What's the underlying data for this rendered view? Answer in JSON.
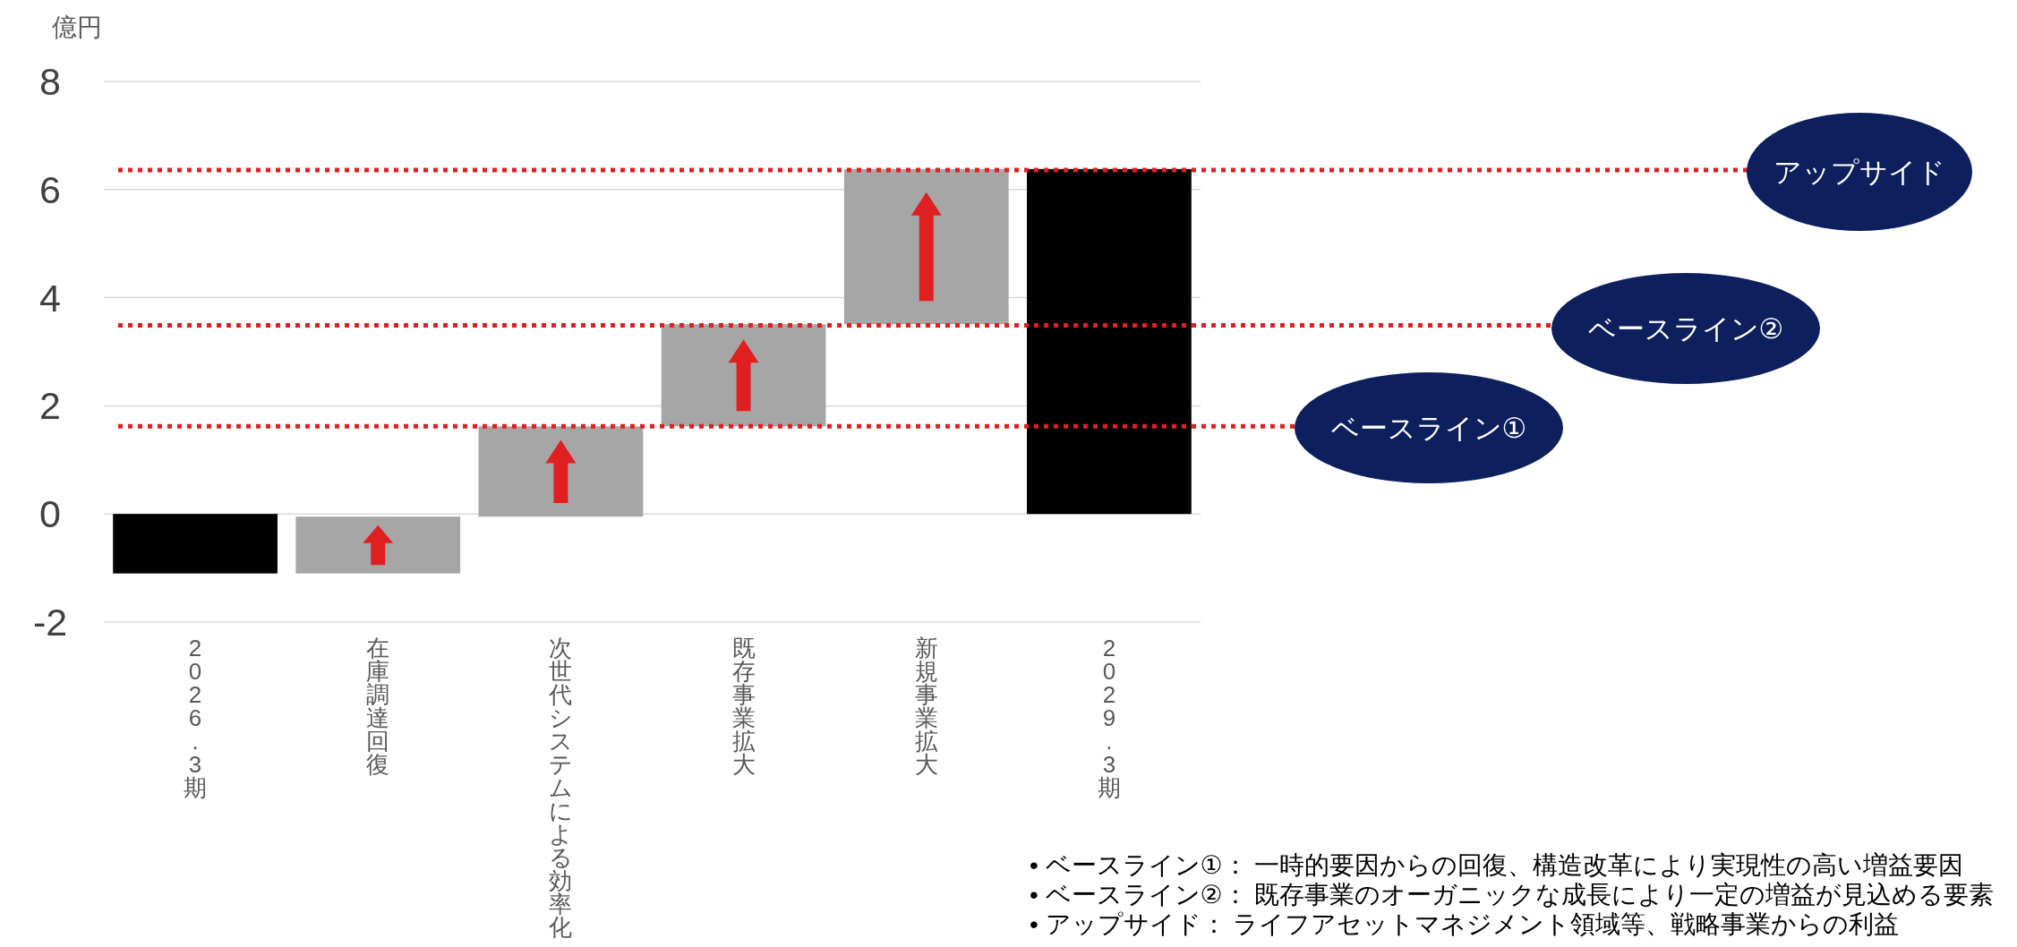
{
  "chart_data": {
    "type": "bar",
    "ylabel": "億円",
    "categories": [
      "2026.3期",
      "在庫調達回復",
      "次世代システムによる効率化",
      "既存事業拡大",
      "新規事業拡大",
      "2029.3期"
    ],
    "values": [
      -1.1,
      1.05,
      1.67,
      1.89,
      2.87,
      6.38
    ],
    "base": [
      0,
      -1.1,
      -0.05,
      1.62,
      3.51,
      0
    ],
    "colors": [
      "#000000",
      "#a6a6a6",
      "#a6a6a6",
      "#a6a6a6",
      "#a6a6a6",
      "#000000"
    ],
    "ylim": [
      -2,
      8
    ],
    "yticks": [
      -2,
      0,
      2,
      4,
      6,
      8
    ],
    "grid": "y",
    "ref_lines": [
      {
        "axis": "y",
        "value": 1.62,
        "label": "ベースライン①",
        "color": "#e02020",
        "line_style": "dotted"
      },
      {
        "axis": "y",
        "value": 3.49,
        "label": "ベースライン②",
        "color": "#e02020",
        "line_style": "dotted"
      },
      {
        "axis": "y",
        "value": 6.36,
        "label": "アップサイド",
        "color": "#e02020",
        "line_style": "dotted"
      }
    ],
    "annotations": [
      "•  ベースライン①： 一時的要因からの回復、構造改革により実現性の高い増益要因",
      "•  ベースライン②： 既存事業のオーガニックな成長により一定の増益が見込める要素",
      "•  アップサイド： ライフアセットマネジメント領域等、戦略事業からの利益"
    ]
  }
}
